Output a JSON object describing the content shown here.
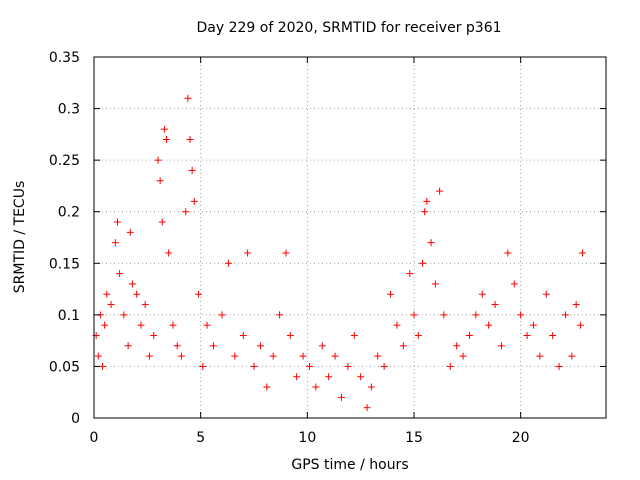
{
  "chart_data": {
    "type": "scatter",
    "title": "Day 229 of 2020, SRMTID for receiver p361",
    "xlabel": "GPS time / hours",
    "ylabel": "SRMTID / TECUs",
    "xlim": [
      0,
      24
    ],
    "ylim": [
      0,
      0.35
    ],
    "xticks": [
      "0",
      "5",
      "10",
      "15",
      "20"
    ],
    "yticks": [
      "0",
      "0.05",
      "0.1",
      "0.15",
      "0.2",
      "0.25",
      "0.3",
      "0.35"
    ],
    "grid": true,
    "marker": "+",
    "marker_color": "#ff0000",
    "series": [
      {
        "name": "SRMTID",
        "points": [
          [
            0.1,
            0.08
          ],
          [
            0.2,
            0.06
          ],
          [
            0.3,
            0.1
          ],
          [
            0.4,
            0.05
          ],
          [
            0.5,
            0.09
          ],
          [
            0.6,
            0.12
          ],
          [
            0.8,
            0.11
          ],
          [
            1.0,
            0.17
          ],
          [
            1.1,
            0.19
          ],
          [
            1.2,
            0.14
          ],
          [
            1.4,
            0.1
          ],
          [
            1.6,
            0.07
          ],
          [
            1.7,
            0.18
          ],
          [
            1.8,
            0.13
          ],
          [
            2.0,
            0.12
          ],
          [
            2.2,
            0.09
          ],
          [
            2.4,
            0.11
          ],
          [
            2.6,
            0.06
          ],
          [
            2.8,
            0.08
          ],
          [
            3.0,
            0.25
          ],
          [
            3.1,
            0.23
          ],
          [
            3.2,
            0.19
          ],
          [
            3.3,
            0.28
          ],
          [
            3.4,
            0.27
          ],
          [
            3.5,
            0.16
          ],
          [
            3.7,
            0.09
          ],
          [
            3.9,
            0.07
          ],
          [
            4.1,
            0.06
          ],
          [
            4.3,
            0.2
          ],
          [
            4.4,
            0.31
          ],
          [
            4.5,
            0.27
          ],
          [
            4.6,
            0.24
          ],
          [
            4.7,
            0.21
          ],
          [
            4.9,
            0.12
          ],
          [
            5.1,
            0.05
          ],
          [
            5.3,
            0.09
          ],
          [
            5.6,
            0.07
          ],
          [
            6.0,
            0.1
          ],
          [
            6.3,
            0.15
          ],
          [
            6.6,
            0.06
          ],
          [
            7.0,
            0.08
          ],
          [
            7.2,
            0.16
          ],
          [
            7.5,
            0.05
          ],
          [
            7.8,
            0.07
          ],
          [
            8.1,
            0.03
          ],
          [
            8.4,
            0.06
          ],
          [
            8.7,
            0.1
          ],
          [
            9.0,
            0.16
          ],
          [
            9.2,
            0.08
          ],
          [
            9.5,
            0.04
          ],
          [
            9.8,
            0.06
          ],
          [
            10.1,
            0.05
          ],
          [
            10.4,
            0.03
          ],
          [
            10.7,
            0.07
          ],
          [
            11.0,
            0.04
          ],
          [
            11.3,
            0.06
          ],
          [
            11.6,
            0.02
          ],
          [
            11.9,
            0.05
          ],
          [
            12.2,
            0.08
          ],
          [
            12.5,
            0.04
          ],
          [
            12.8,
            0.01
          ],
          [
            13.0,
            0.03
          ],
          [
            13.3,
            0.06
          ],
          [
            13.6,
            0.05
          ],
          [
            13.9,
            0.12
          ],
          [
            14.2,
            0.09
          ],
          [
            14.5,
            0.07
          ],
          [
            14.8,
            0.14
          ],
          [
            15.0,
            0.1
          ],
          [
            15.2,
            0.08
          ],
          [
            15.4,
            0.15
          ],
          [
            15.5,
            0.2
          ],
          [
            15.6,
            0.21
          ],
          [
            15.8,
            0.17
          ],
          [
            16.0,
            0.13
          ],
          [
            16.2,
            0.22
          ],
          [
            16.4,
            0.1
          ],
          [
            16.7,
            0.05
          ],
          [
            17.0,
            0.07
          ],
          [
            17.3,
            0.06
          ],
          [
            17.6,
            0.08
          ],
          [
            17.9,
            0.1
          ],
          [
            18.2,
            0.12
          ],
          [
            18.5,
            0.09
          ],
          [
            18.8,
            0.11
          ],
          [
            19.1,
            0.07
          ],
          [
            19.4,
            0.16
          ],
          [
            19.7,
            0.13
          ],
          [
            20.0,
            0.1
          ],
          [
            20.3,
            0.08
          ],
          [
            20.6,
            0.09
          ],
          [
            20.9,
            0.06
          ],
          [
            21.2,
            0.12
          ],
          [
            21.5,
            0.08
          ],
          [
            21.8,
            0.05
          ],
          [
            22.1,
            0.1
          ],
          [
            22.4,
            0.06
          ],
          [
            22.6,
            0.11
          ],
          [
            22.8,
            0.09
          ],
          [
            22.9,
            0.16
          ]
        ]
      }
    ]
  }
}
